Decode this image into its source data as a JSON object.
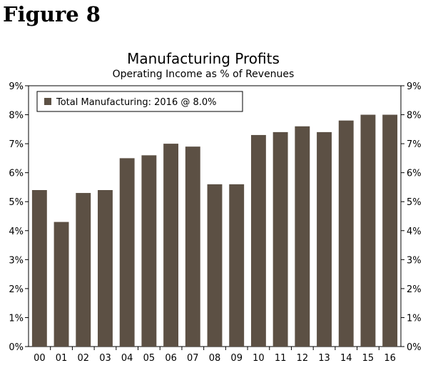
{
  "figure_label": "Figure 8",
  "chart_data": {
    "type": "bar",
    "title": "Manufacturing Profits",
    "subtitle": "Operating Income as % of Revenues",
    "xlabel": "",
    "ylabel": "",
    "categories": [
      "00",
      "01",
      "02",
      "03",
      "04",
      "05",
      "06",
      "07",
      "08",
      "09",
      "10",
      "11",
      "12",
      "13",
      "14",
      "15",
      "16"
    ],
    "series": [
      {
        "name": "Total Manufacturing: 2016 @ 8.0%",
        "color": "#5c5044",
        "values": [
          5.4,
          4.3,
          5.3,
          5.4,
          6.5,
          6.6,
          7.0,
          6.9,
          5.6,
          5.6,
          7.3,
          7.4,
          7.6,
          7.4,
          7.8,
          8.0,
          8.0
        ]
      }
    ],
    "ylim": [
      0,
      9
    ],
    "yticks": [
      "0%",
      "1%",
      "2%",
      "3%",
      "4%",
      "5%",
      "6%",
      "7%",
      "8%",
      "9%"
    ],
    "secondary_y_axis": true,
    "grid": false,
    "legend_position": "top-left"
  }
}
